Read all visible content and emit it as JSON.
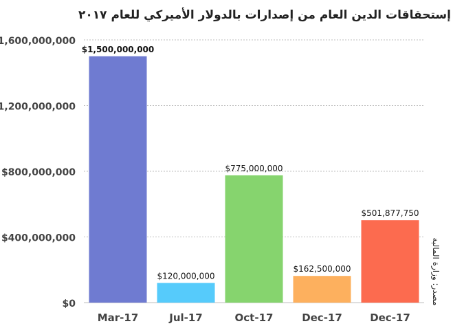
{
  "chart_data": {
    "type": "bar",
    "title": "إستحقاقات الدين العام من إصدارات بالدولار الأميركي للعام ٢٠١٧",
    "categories": [
      "Mar-17",
      "Jul-17",
      "Oct-17",
      "Dec-17",
      "Dec-17"
    ],
    "values": [
      1500000000,
      120000000,
      775000000,
      162500000,
      501877750
    ],
    "data_labels": [
      "$1,500,000,000",
      "$120,000,000",
      "$775,000,000",
      "$162,500,000",
      "$501,877,750"
    ],
    "bar_colors": [
      "#6f7bd1",
      "#56cbfb",
      "#86d46e",
      "#fdb05e",
      "#fc6b4f"
    ],
    "ylim": [
      0,
      1600000000
    ],
    "yticks": [
      0,
      400000000,
      800000000,
      1200000000,
      1600000000
    ],
    "ytick_labels": [
      "$0",
      "$400,000,000",
      "$800,000,000",
      "$1,200,000,000",
      "$1,600,000,000"
    ],
    "grid": true,
    "xlabel": "",
    "ylabel": ""
  },
  "side_note": "مصدر: وزارة المالية"
}
